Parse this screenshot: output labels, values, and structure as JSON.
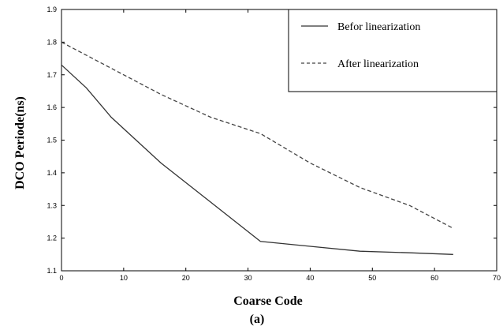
{
  "chart_data": {
    "type": "line",
    "xlabel": "Coarse Code",
    "ylabel": "DCO Periode(ns)",
    "caption": "(a)",
    "xlim": [
      0,
      70
    ],
    "ylim": [
      1.1,
      1.9
    ],
    "xticks": [
      0,
      10,
      20,
      30,
      40,
      50,
      60,
      70
    ],
    "yticks": [
      1.1,
      1.2,
      1.3,
      1.4,
      1.5,
      1.6,
      1.7,
      1.8,
      1.9
    ],
    "grid": false,
    "legend_position": "top-right",
    "series": [
      {
        "name": "Befor linearization",
        "style": "solid",
        "color": "#333333",
        "x": [
          0,
          4,
          8,
          16,
          24,
          32,
          40,
          48,
          56,
          63
        ],
        "y": [
          1.73,
          1.66,
          1.57,
          1.43,
          1.31,
          1.19,
          1.175,
          1.16,
          1.155,
          1.15
        ]
      },
      {
        "name": "After linearization",
        "style": "dashed",
        "color": "#444444",
        "x": [
          0,
          8,
          16,
          24,
          32,
          40,
          48,
          56,
          63
        ],
        "y": [
          1.8,
          1.72,
          1.64,
          1.57,
          1.52,
          1.43,
          1.355,
          1.3,
          1.23
        ]
      }
    ]
  }
}
